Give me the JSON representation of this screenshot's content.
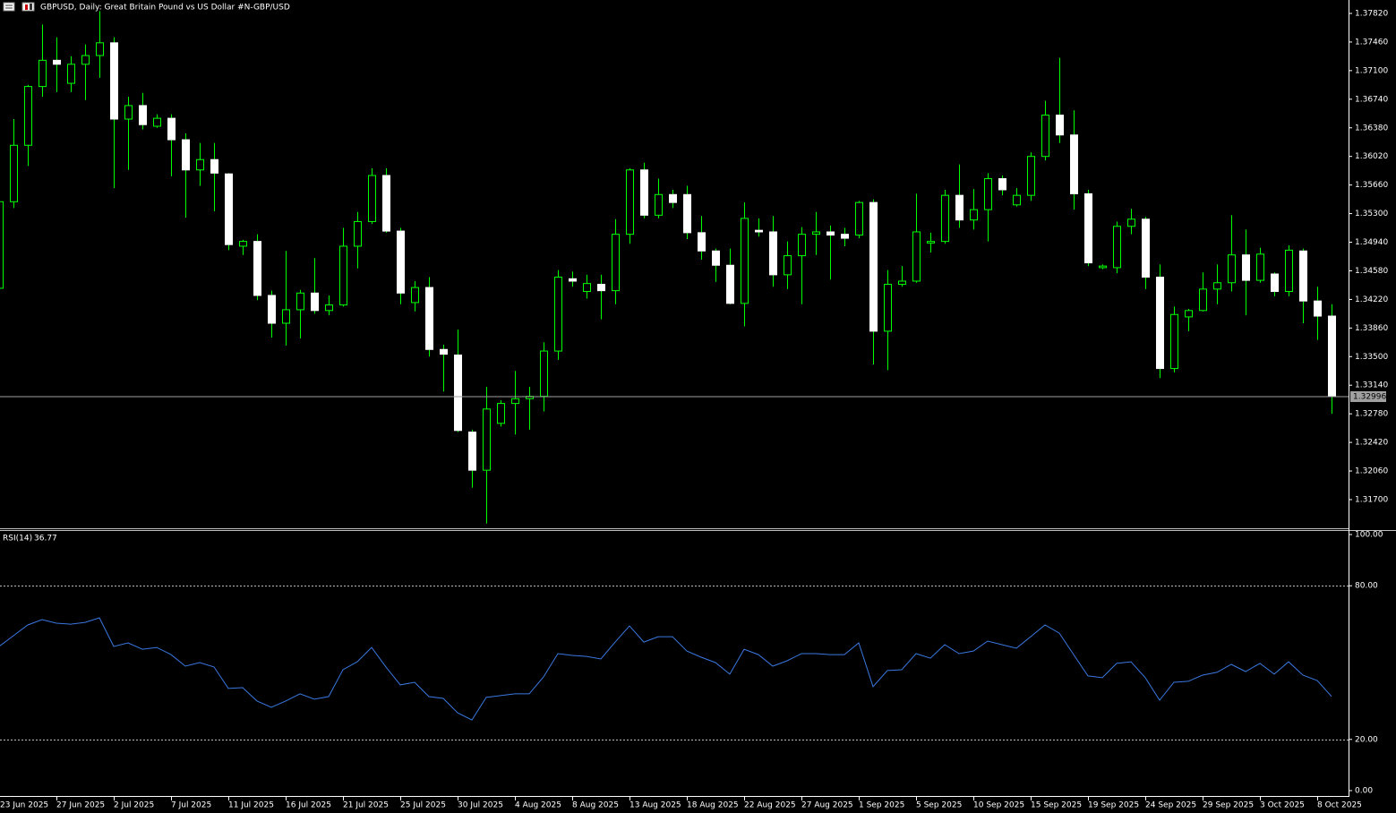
{
  "chart_data": [
    {
      "type": "candlestick",
      "title": "GBPUSD, Daily:  Great Britain Pound vs US Dollar #N-GBP/USD",
      "categories": [
        "23 Jun 2025",
        null,
        null,
        null,
        "27 Jun 2025",
        null,
        null,
        null,
        "2 Jul 2025",
        null,
        null,
        null,
        "7 Jul 2025",
        null,
        null,
        null,
        "11 Jul 2025",
        null,
        null,
        null,
        "16 Jul 2025",
        null,
        null,
        null,
        "21 Jul 2025",
        null,
        null,
        null,
        "25 Jul 2025",
        null,
        null,
        null,
        "30 Jul 2025",
        null,
        null,
        null,
        "4 Aug 2025",
        null,
        null,
        null,
        "8 Aug 2025",
        null,
        null,
        null,
        "13 Aug 2025",
        null,
        null,
        null,
        "18 Aug 2025",
        null,
        null,
        null,
        "22 Aug 2025",
        null,
        null,
        null,
        "27 Aug 2025",
        null,
        null,
        null,
        "1 Sep 2025",
        null,
        null,
        null,
        "5 Sep 2025",
        null,
        null,
        null,
        "10 Sep 2025",
        null,
        null,
        null,
        "15 Sep 2025",
        null,
        null,
        null,
        "19 Sep 2025",
        null,
        null,
        null,
        "24 Sep 2025",
        null,
        null,
        null,
        "29 Sep 2025",
        null,
        null,
        null,
        "3 Oct 2025",
        null,
        null,
        null,
        "8 Oct 2025",
        null
      ],
      "open": [
        1.3436,
        1.3545,
        1.3616,
        1.369,
        1.3723,
        1.3694,
        1.3718,
        1.3729,
        1.3745,
        1.3649,
        1.3666,
        1.364,
        1.365,
        1.3623,
        1.3585,
        1.3598,
        1.358,
        1.3489,
        1.3495,
        1.3427,
        1.3392,
        1.3409,
        1.343,
        1.3408,
        1.3415,
        1.3489,
        1.352,
        1.3578,
        1.3508,
        1.3418,
        1.3437,
        1.3359,
        1.3352,
        1.3255,
        1.3207,
        1.3266,
        1.3291,
        1.3297,
        1.33,
        1.3357,
        1.3448,
        1.3432,
        1.3441,
        1.3433,
        1.3504,
        1.3585,
        1.3528,
        1.3554,
        1.3554,
        1.3506,
        1.3483,
        1.3465,
        1.3417,
        1.3509,
        1.3507,
        1.3453,
        1.3477,
        1.3504,
        1.3507,
        1.3504,
        1.3503,
        1.3544,
        1.3382,
        1.3441,
        1.3445,
        1.3493,
        1.3495,
        1.3553,
        1.3522,
        1.3535,
        1.3574,
        1.3541,
        1.3553,
        1.3602,
        1.3654,
        1.3629,
        1.3555,
        1.3462,
        1.3462,
        1.3514,
        1.3523,
        1.345,
        1.3335,
        1.34,
        1.3408,
        1.3435,
        1.3443,
        1.3478,
        1.3446,
        1.3454,
        1.3432,
        1.3483,
        1.342,
        1.3401
      ],
      "high": [
        1.3551,
        1.3649,
        1.3692,
        1.3768,
        1.3752,
        1.3728,
        1.3743,
        1.3785,
        1.3752,
        1.3677,
        1.3682,
        1.3655,
        1.3655,
        1.3631,
        1.3619,
        1.3619,
        1.3581,
        1.3497,
        1.3504,
        1.3433,
        1.3483,
        1.3434,
        1.3474,
        1.3427,
        1.3512,
        1.3532,
        1.3587,
        1.3587,
        1.3512,
        1.3445,
        1.345,
        1.3365,
        1.3384,
        1.3258,
        1.3312,
        1.3295,
        1.3332,
        1.3312,
        1.3368,
        1.3459,
        1.3457,
        1.3453,
        1.3453,
        1.3523,
        1.3587,
        1.3594,
        1.3574,
        1.356,
        1.3565,
        1.3527,
        1.3486,
        1.3486,
        1.3544,
        1.3524,
        1.3527,
        1.3495,
        1.3513,
        1.3532,
        1.3515,
        1.3512,
        1.3546,
        1.3548,
        1.3459,
        1.3464,
        1.3555,
        1.3506,
        1.356,
        1.3592,
        1.3561,
        1.3581,
        1.3578,
        1.3562,
        1.3607,
        1.3672,
        1.3726,
        1.366,
        1.356,
        1.3466,
        1.352,
        1.3536,
        1.3526,
        1.3466,
        1.3413,
        1.341,
        1.3456,
        1.3466,
        1.3528,
        1.351,
        1.3487,
        1.3456,
        1.349,
        1.3486,
        1.3438,
        1.3416
      ],
      "low": [
        1.3433,
        1.3537,
        1.359,
        1.3677,
        1.3683,
        1.3683,
        1.3673,
        1.3701,
        1.3562,
        1.3585,
        1.3636,
        1.3638,
        1.3577,
        1.3525,
        1.3565,
        1.3533,
        1.3484,
        1.3478,
        1.3421,
        1.3374,
        1.3364,
        1.3373,
        1.3404,
        1.3402,
        1.3413,
        1.3461,
        1.3517,
        1.3506,
        1.3416,
        1.3407,
        1.335,
        1.3306,
        1.3255,
        1.3185,
        1.314,
        1.3262,
        1.3252,
        1.3258,
        1.3281,
        1.3346,
        1.3438,
        1.3423,
        1.3397,
        1.3416,
        1.3492,
        1.3524,
        1.3524,
        1.3537,
        1.3498,
        1.3472,
        1.3444,
        1.3416,
        1.3388,
        1.3501,
        1.3438,
        1.3435,
        1.3416,
        1.3478,
        1.3447,
        1.3489,
        1.3499,
        1.334,
        1.3333,
        1.3438,
        1.3443,
        1.3481,
        1.3492,
        1.3512,
        1.351,
        1.3495,
        1.3553,
        1.3539,
        1.3546,
        1.3597,
        1.3619,
        1.3535,
        1.3464,
        1.346,
        1.3455,
        1.3504,
        1.3435,
        1.3323,
        1.333,
        1.3382,
        1.3407,
        1.3416,
        1.3432,
        1.3402,
        1.3443,
        1.3426,
        1.3426,
        1.3392,
        1.3371,
        1.3278
      ],
      "close": [
        1.3545,
        1.3616,
        1.369,
        1.3723,
        1.3718,
        1.3718,
        1.3729,
        1.3745,
        1.3649,
        1.3666,
        1.3642,
        1.365,
        1.3623,
        1.3585,
        1.3598,
        1.3581,
        1.3491,
        1.3495,
        1.3427,
        1.3392,
        1.3409,
        1.343,
        1.3408,
        1.3415,
        1.3489,
        1.352,
        1.3578,
        1.3508,
        1.343,
        1.3437,
        1.3359,
        1.3353,
        1.3257,
        1.3207,
        1.3284,
        1.3291,
        1.3297,
        1.33,
        1.3357,
        1.345,
        1.3445,
        1.3442,
        1.3433,
        1.3504,
        1.3585,
        1.3528,
        1.3554,
        1.3544,
        1.3506,
        1.3483,
        1.3465,
        1.3417,
        1.3524,
        1.3507,
        1.3453,
        1.3477,
        1.3504,
        1.3507,
        1.3503,
        1.3499,
        1.3544,
        1.3382,
        1.3441,
        1.3445,
        1.3507,
        1.3495,
        1.3553,
        1.3522,
        1.3535,
        1.3574,
        1.356,
        1.3553,
        1.3602,
        1.3654,
        1.3629,
        1.3555,
        1.3468,
        1.3464,
        1.3514,
        1.3523,
        1.345,
        1.3335,
        1.3403,
        1.3408,
        1.3435,
        1.3443,
        1.3478,
        1.3446,
        1.3479,
        1.3432,
        1.3484,
        1.342,
        1.3401,
        1.32996
      ],
      "up_color": "#000000",
      "down_color": "#ffffff",
      "wick_color": "#00ff00",
      "current_price": 1.32996,
      "ylim": [
        1.31339,
        1.37989
      ],
      "yticks": [
        {
          "value": 1.3782,
          "label": "1.37820"
        },
        {
          "value": 1.3746,
          "label": "1.37460"
        },
        {
          "value": 1.371,
          "label": "1.37100"
        },
        {
          "value": 1.3674,
          "label": "1.36740"
        },
        {
          "value": 1.3638,
          "label": "1.36380"
        },
        {
          "value": 1.3602,
          "label": "1.36020"
        },
        {
          "value": 1.3566,
          "label": "1.35660"
        },
        {
          "value": 1.353,
          "label": "1.35300"
        },
        {
          "value": 1.3494,
          "label": "1.34940"
        },
        {
          "value": 1.3458,
          "label": "1.34580"
        },
        {
          "value": 1.3422,
          "label": "1.34220"
        },
        {
          "value": 1.3386,
          "label": "1.33860"
        },
        {
          "value": 1.335,
          "label": "1.33500"
        },
        {
          "value": 1.3314,
          "label": "1.33140"
        },
        {
          "value": 1.3278,
          "label": "1.32780"
        },
        {
          "value": 1.3242,
          "label": "1.32420"
        },
        {
          "value": 1.3206,
          "label": "1.32060"
        },
        {
          "value": 1.317,
          "label": "1.31700"
        }
      ]
    },
    {
      "type": "line",
      "title": "RSI(14)",
      "color": "#3a78e0",
      "values": [
        56.3,
        60.5,
        64.7,
        66.8,
        65.4,
        65.0,
        65.7,
        67.5,
        56.3,
        57.7,
        55.2,
        55.9,
        53.1,
        48.6,
        50.0,
        48.3,
        39.9,
        40.2,
        35.0,
        32.5,
        35.0,
        37.8,
        35.7,
        36.7,
        47.2,
        50.3,
        55.9,
        48.3,
        41.3,
        42.3,
        36.7,
        36.0,
        30.4,
        27.6,
        36.4,
        37.1,
        37.8,
        37.8,
        44.4,
        53.5,
        52.8,
        52.4,
        51.4,
        58.0,
        64.3,
        58.0,
        60.1,
        60.1,
        54.5,
        52.1,
        50.0,
        45.5,
        55.2,
        53.1,
        48.6,
        50.7,
        53.5,
        53.5,
        53.1,
        53.1,
        57.7,
        40.6,
        46.9,
        47.2,
        53.5,
        51.7,
        57.0,
        53.5,
        54.5,
        58.4,
        57.0,
        55.6,
        60.1,
        64.7,
        61.5,
        53.1,
        44.8,
        44.1,
        49.7,
        50.3,
        44.1,
        35.3,
        42.3,
        42.7,
        45.1,
        46.2,
        49.3,
        46.5,
        49.7,
        45.5,
        50.3,
        45.1,
        43.0,
        36.77
      ],
      "ylim": [
        0,
        100
      ],
      "yticks": [
        {
          "value": 100,
          "label": "100.00"
        },
        {
          "value": 80,
          "label": "80.00"
        },
        {
          "value": 20,
          "label": "20.00"
        },
        {
          "value": 0,
          "label": "0.00"
        }
      ],
      "levels": [
        80,
        20
      ]
    }
  ]
}
